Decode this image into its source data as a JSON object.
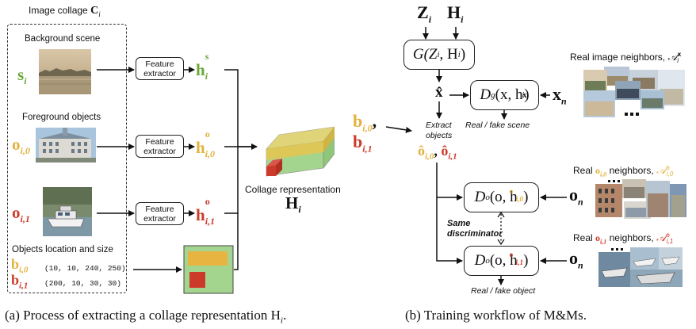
{
  "left": {
    "collage_title": "Image collage",
    "collage_symbol": "C",
    "collage_sub": "i",
    "background_label": "Background scene",
    "foreground_label": "Foreground objects",
    "location_label": "Objects location and size",
    "feature_extractor": "Feature extractor",
    "s_label": "s",
    "o_label": "o",
    "b_label": "b",
    "h_label": "h",
    "sub_i": "i",
    "sub_i0": "i,0",
    "sub_i1": "i,1",
    "sup_s": "s",
    "sup_o": "o",
    "b0_values": "(10, 10, 240, 250)",
    "b1_values": "(200, 10, 30, 30)",
    "collage_rep_label": "Collage representation",
    "H_label": "H",
    "caption": "(a) Process of extracting a collage representation H",
    "caption_sub": "i",
    "caption_end": "."
  },
  "right": {
    "Z_label": "Z",
    "H_label": "H",
    "sub_i": "i",
    "generator": "G(Z",
    "generator_mid": ", H",
    "generator_end": ")",
    "xhat": "x̂",
    "scene_disc_pre": "D",
    "scene_disc_sup": "g",
    "scene_disc_mid": "(x, h",
    "scene_disc_hsup": "x",
    "scene_disc_end": ")",
    "x_n": "x",
    "n": "n",
    "real_image_neighbors": "Real image neighbors,",
    "real_fake_scene": "Real / fake scene",
    "extract_objects": "Extract objects",
    "b_label": "b",
    "sub_i0": "i,0",
    "sub_i1": "i,1",
    "comma": ",",
    "ohat": "ô",
    "obj_disc_pre": "D",
    "obj_disc_sup": "o",
    "obj_disc_mid": "(o, h",
    "obj_disc_end": ")",
    "o_n": "o",
    "real_prefix": "Real",
    "neighbors_word": "neighbors,",
    "same_discriminator": "Same discriminator",
    "real_fake_object": "Real / fake object",
    "caption": "(b) Training workflow of M&Ms."
  },
  "colors": {
    "green": "#6aa83a",
    "yellow": "#e2b23d",
    "red": "#cc3b2a"
  },
  "icons": [
    "arrow-icon",
    "ellipsis-icon"
  ]
}
